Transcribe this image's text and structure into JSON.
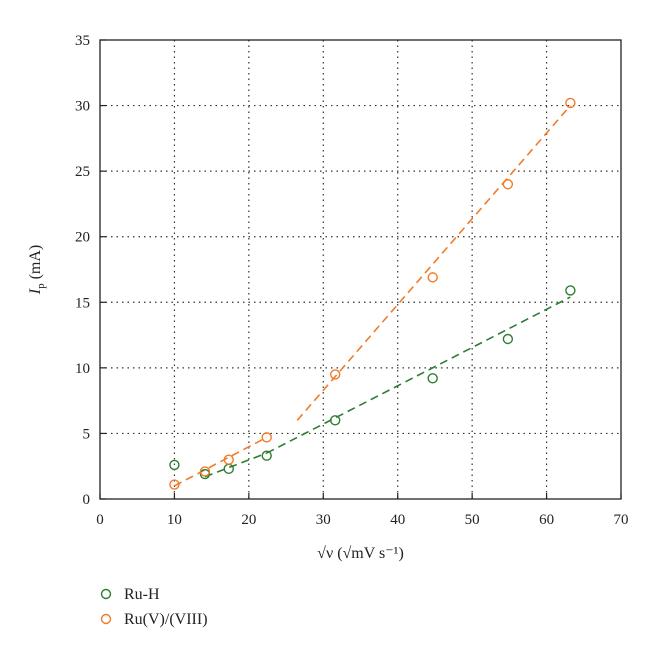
{
  "chart_data": {
    "type": "scatter",
    "xlabel": "√ν (√mV s⁻¹)",
    "ylabel": "I",
    "ylabel_sub": "p",
    "ylabel_unit": " (mA)",
    "xlim": [
      0,
      70
    ],
    "ylim": [
      0,
      35
    ],
    "xticks": [
      0,
      10,
      20,
      30,
      40,
      50,
      60,
      70
    ],
    "yticks": [
      0,
      5,
      10,
      15,
      20,
      25,
      30,
      35
    ],
    "grid": "dotted",
    "legend_position": "bottom-left-below-axes",
    "series": [
      {
        "name": "Ru-H",
        "color": "#2e7d32",
        "x": [
          10.0,
          14.1,
          17.3,
          22.4,
          31.6,
          44.7,
          54.8,
          63.2
        ],
        "y": [
          2.6,
          1.9,
          2.3,
          3.3,
          6.0,
          9.2,
          12.2,
          15.9
        ],
        "fits": [
          {
            "x": [
              14.1,
              22.4
            ],
            "y": [
              1.7,
              3.5
            ]
          },
          {
            "x": [
              22.4,
              63.2
            ],
            "y": [
              3.5,
              15.4
            ]
          }
        ]
      },
      {
        "name": "Ru(V)/(VIII)",
        "color": "#f07c2a",
        "x": [
          10.0,
          14.1,
          17.3,
          22.4,
          31.6,
          44.7,
          54.8,
          63.2
        ],
        "y": [
          1.1,
          2.1,
          3.0,
          4.7,
          9.5,
          16.9,
          24.0,
          30.2
        ],
        "fits": [
          {
            "x": [
              10.0,
              22.4
            ],
            "y": [
              1.0,
              4.7
            ]
          },
          {
            "x": [
              26.5,
              63.2
            ],
            "y": [
              6.0,
              30.0
            ]
          }
        ]
      }
    ]
  }
}
